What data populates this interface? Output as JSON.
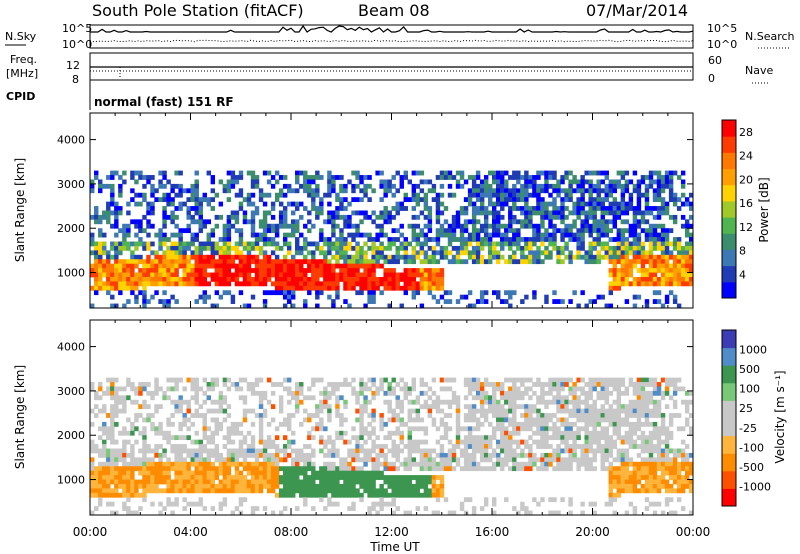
{
  "header": {
    "station": "South Pole Station (fitACF)",
    "beam": "Beam 08",
    "date": "07/Mar/2014"
  },
  "noise_panel": {
    "left_label": "N.Sky",
    "right_label": "N.Search",
    "tick_top": "10^5",
    "tick_bottom": "10^0"
  },
  "freq_panel": {
    "left_label_line1": "Freq.",
    "left_label_line2": "[MHz]",
    "left_ticks": [
      "12",
      "8"
    ],
    "right_label": "Nave",
    "right_ticks": [
      "60",
      "0"
    ]
  },
  "cpid_panel": {
    "label": "CPID",
    "mode": "normal (fast) 151 RF"
  },
  "colors": {
    "power": [
      "#0000ff",
      "#1f3cb4",
      "#3c78b4",
      "#3c8c6e",
      "#50b450",
      "#a0c828",
      "#ffd200",
      "#ffa000",
      "#ff7800",
      "#ff3c00",
      "#ff0000"
    ],
    "velocity": [
      "#ff0000",
      "#ff5000",
      "#ff8c00",
      "#ffb43c",
      "#c8c8c8",
      "#c8c8c8",
      "#78c878",
      "#3c9650",
      "#508cc8",
      "#3c3cb4"
    ]
  },
  "chart_data": [
    {
      "type": "heatmap",
      "name": "power",
      "xlabel": "",
      "ylabel": "Slant Range [km]",
      "x_ticks": [
        "00:00",
        "04:00",
        "08:00",
        "12:00",
        "16:00",
        "20:00",
        "00:00"
      ],
      "y_ticks": [
        1000,
        2000,
        3000,
        4000
      ],
      "ylim": [
        200,
        4600
      ],
      "xlim_hours": [
        0,
        24
      ],
      "colorbar_label": "Power [dB]",
      "colorbar_ticks": [
        4,
        8,
        12,
        16,
        20,
        24,
        28
      ],
      "colorbar_range": [
        0,
        30
      ]
    },
    {
      "type": "heatmap",
      "name": "velocity",
      "xlabel": "Time UT",
      "ylabel": "Slant Range [km]",
      "x_ticks": [
        "00:00",
        "04:00",
        "08:00",
        "12:00",
        "16:00",
        "20:00",
        "00:00"
      ],
      "y_ticks": [
        1000,
        2000,
        3000,
        4000
      ],
      "ylim": [
        200,
        4600
      ],
      "xlim_hours": [
        0,
        24
      ],
      "colorbar_label": "Velocity [m s⁻¹]",
      "colorbar_ticks": [
        "1000",
        "500",
        "100",
        "25",
        "-25",
        "-100",
        "-500",
        "-1000"
      ]
    }
  ]
}
